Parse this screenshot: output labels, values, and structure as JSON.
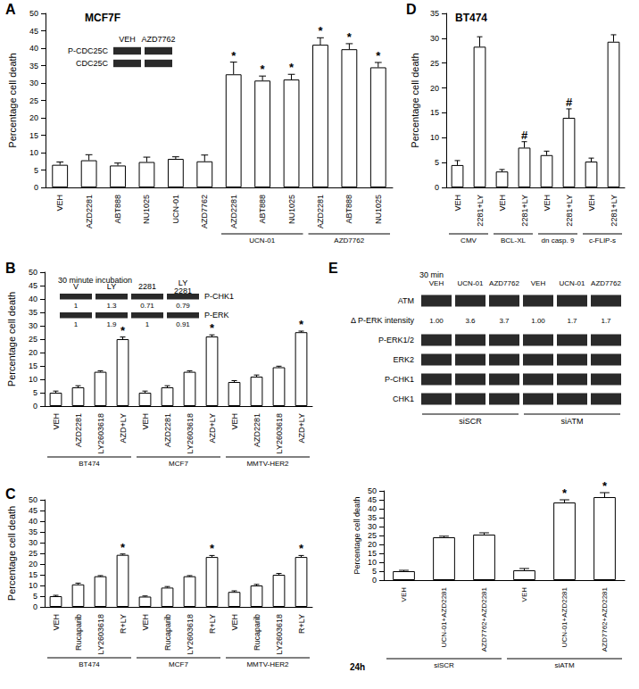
{
  "chart_data": [
    {
      "type": "bar",
      "panel": "A",
      "title": "MCF7F",
      "y_label": "Percentage cell death",
      "categories": [
        "VEH",
        "AZD2281",
        "ABT888",
        "NU1025",
        "UCN-01",
        "AZD7762",
        "AZD2281",
        "ABT888",
        "NU1025",
        "AZD2281",
        "ABT888",
        "NU1025"
      ],
      "values": [
        6.5,
        7.8,
        6.3,
        7.3,
        8.2,
        7.5,
        32.5,
        30.7,
        31,
        41,
        39.7,
        34.5
      ],
      "errors": [
        0.8,
        1.6,
        0.7,
        1.4,
        0.6,
        1.8,
        3.5,
        1.3,
        1.5,
        2,
        1.6,
        1.4
      ],
      "marks": [
        null,
        null,
        null,
        null,
        null,
        null,
        "*",
        "*",
        "*",
        "*",
        "*",
        "*"
      ],
      "group_labels": [
        null,
        null,
        null,
        null,
        null,
        null,
        "UCN-01",
        "UCN-01",
        "UCN-01",
        "AZD7762",
        "AZD7762",
        "AZD7762"
      ],
      "color": "#ffffff",
      "ylim": [
        0,
        50
      ],
      "yticks": [
        0,
        5,
        10,
        15,
        20,
        25,
        30,
        35,
        40,
        45,
        50
      ],
      "grid": false,
      "blot": {
        "columns": [
          "VEH",
          "AZD7762"
        ],
        "rows": [
          {
            "label": "P-CDC25C"
          },
          {
            "label": "CDC25C"
          }
        ]
      }
    },
    {
      "type": "bar",
      "panel": "B",
      "y_label": "Percentage cell death",
      "categories": [
        "VEH",
        "AZD2281",
        "LY2603618",
        "AZD+LY",
        "VEH",
        "AZD2281",
        "LY2603618",
        "AZD+LY",
        "VEH",
        "AZD2281",
        "LY2603618",
        "AZD+LY"
      ],
      "values": [
        5,
        7,
        12.8,
        25,
        5,
        7,
        12.8,
        26,
        9,
        11,
        14.5,
        27.6
      ],
      "errors": [
        0.6,
        0.6,
        0.4,
        0.8,
        0.6,
        0.6,
        0.4,
        0.6,
        0.5,
        0.6,
        0.4,
        0.4
      ],
      "marks": [
        null,
        null,
        null,
        "*",
        null,
        null,
        null,
        "*",
        null,
        null,
        null,
        "*"
      ],
      "group_labels": [
        "BT474",
        "BT474",
        "BT474",
        "BT474",
        "MCF7",
        "MCF7",
        "MCF7",
        "MCF7",
        "MMTV-HER2",
        "MMTV-HER2",
        "MMTV-HER2",
        "MMTV-HER2"
      ],
      "color": "#ffffff",
      "ylim": [
        0,
        50
      ],
      "yticks": [
        0,
        5,
        10,
        15,
        20,
        25,
        30,
        35,
        40,
        45,
        50
      ],
      "grid": false,
      "blot": {
        "title": "30 minute incubation",
        "columns": [
          "V",
          "LY",
          "2281",
          "LY\n2281"
        ],
        "rows": [
          {
            "label": "P-CHK1"
          },
          {
            "values": [
              "1",
              "1.3",
              "0.71",
              "0.79"
            ]
          },
          {
            "label": "P-ERK"
          },
          {
            "values": [
              "1",
              "1.9",
              "1",
              "0.91"
            ]
          }
        ]
      }
    },
    {
      "type": "bar",
      "panel": "C",
      "y_label": "Percentage cell death",
      "categories": [
        "VEH",
        "Rucaparib",
        "LY2603618",
        "R+LY",
        "VEH",
        "Rucaparib",
        "LY2603618",
        "R+LY",
        "VEH",
        "Rucaparib",
        "LY2603618",
        "R+LY"
      ],
      "values": [
        5,
        10.5,
        14.3,
        24.3,
        4.8,
        9,
        14.3,
        23.3,
        7,
        10,
        15,
        23.3
      ],
      "errors": [
        0.4,
        0.6,
        0.3,
        0.4,
        0.3,
        0.5,
        0.3,
        0.7,
        0.5,
        0.5,
        0.6,
        0.7
      ],
      "marks": [
        null,
        null,
        null,
        "*",
        null,
        null,
        null,
        "*",
        null,
        null,
        null,
        "*"
      ],
      "group_labels": [
        "BT474",
        "BT474",
        "BT474",
        "BT474",
        "MCF7",
        "MCF7",
        "MCF7",
        "MCF7",
        "MMTV-HER2",
        "MMTV-HER2",
        "MMTV-HER2",
        "MMTV-HER2"
      ],
      "color": "#ffffff",
      "ylim": [
        0,
        50
      ],
      "yticks": [
        0,
        5,
        10,
        15,
        20,
        25,
        30,
        35,
        40,
        45,
        50
      ],
      "grid": false
    },
    {
      "type": "bar",
      "panel": "D",
      "title": "BT474",
      "y_label": "Percentage cell death",
      "categories": [
        "VEH",
        "2281+LY",
        "VEH",
        "2281+LY",
        "VEH",
        "2281+LY",
        "VEH",
        "2281+LY"
      ],
      "values": [
        4.5,
        28.3,
        3.2,
        8,
        6.5,
        14,
        5.2,
        29.3
      ],
      "errors": [
        0.9,
        2,
        0.4,
        1.2,
        0.8,
        1.8,
        0.7,
        1.4
      ],
      "marks": [
        null,
        null,
        null,
        "#",
        null,
        "#",
        null,
        null
      ],
      "group_labels": [
        "CMV",
        "CMV",
        "BCL-XL",
        "BCL-XL",
        "dn casp. 9",
        "dn casp. 9",
        "c-FLIP-s",
        "c-FLIP-s"
      ],
      "color": "#ffffff",
      "ylim": [
        0,
        35
      ],
      "yticks": [
        0,
        5,
        10,
        15,
        20,
        25,
        30,
        35
      ],
      "grid": false
    },
    {
      "type": "bar",
      "panel": "E",
      "y_label": "Percentage cell death",
      "annotation": "24h",
      "categories": [
        "VEH",
        "UCN-01+AZD2281",
        "AZD7762+AZD2281",
        "VEH",
        "UCN-01+AZD2281",
        "AZD7762+AZD2281"
      ],
      "values": [
        5,
        24,
        25.5,
        5.5,
        43.5,
        46.5
      ],
      "errors": [
        0.5,
        0.6,
        1,
        1,
        1.5,
        2.5
      ],
      "marks": [
        null,
        null,
        null,
        null,
        "*",
        "*"
      ],
      "group_labels": [
        "siSCR",
        "siSCR",
        "siSCR",
        "siATM",
        "siATM",
        "siATM"
      ],
      "color": "#ffffff",
      "ylim": [
        0,
        50
      ],
      "yticks": [
        0,
        5,
        10,
        15,
        20,
        25,
        30,
        35,
        40,
        45,
        50
      ],
      "grid": false,
      "blot": {
        "title": "30 min",
        "columns": [
          "VEH",
          "UCN-01",
          "AZD7762",
          "VEH",
          "UCN-01",
          "AZD7762"
        ],
        "column_groups": [
          "siSCR",
          "siSCR",
          "siSCR",
          "siATM",
          "siATM",
          "siATM"
        ],
        "rows": [
          {
            "label": "ATM"
          },
          {
            "label": "Δ P-ERK intensity",
            "values": [
              "1.00",
              "3.6",
              "3.7",
              "1.00",
              "1.7",
              "1.7"
            ]
          },
          {
            "label": "P-ERK1/2"
          },
          {
            "label": "ERK2"
          },
          {
            "label": "P-CHK1"
          },
          {
            "label": "CHK1"
          }
        ]
      }
    }
  ]
}
